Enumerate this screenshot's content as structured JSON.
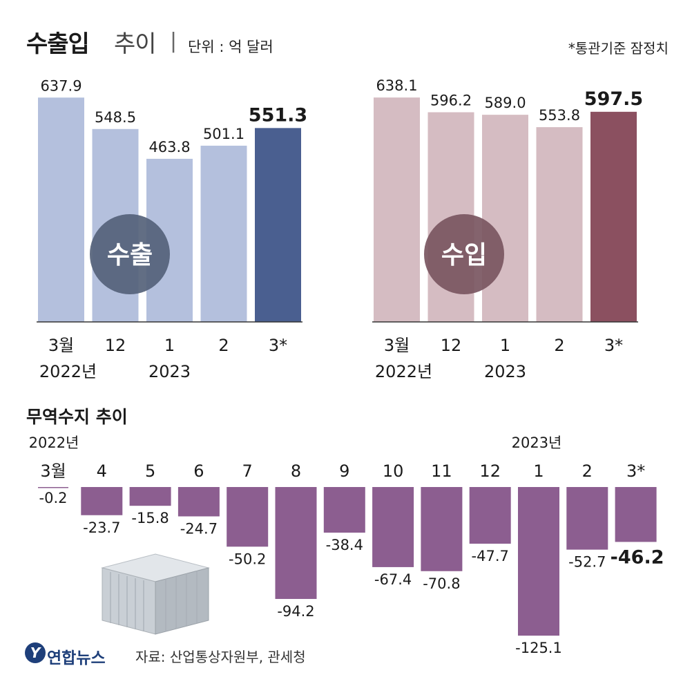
{
  "header": {
    "title_main": "수출입",
    "title_sub": "추이",
    "title_sep": "|",
    "unit": "단위 : 억 달러",
    "basis_note": "*통관기준 잠정치"
  },
  "chart_data": [
    {
      "type": "bar",
      "name": "수출",
      "categories": [
        "3월",
        "12",
        "1",
        "2",
        "3*"
      ],
      "year_labels": [
        "2022년",
        "2023"
      ],
      "values": [
        637.9,
        548.5,
        463.8,
        501.1,
        551.3
      ],
      "value_labels": [
        "637.9",
        "548.5",
        "463.8",
        "501.1",
        "551.3"
      ],
      "ylim": [
        0,
        660
      ],
      "highlight_index": 4,
      "colors": {
        "base": "#b4c0dd",
        "highlight": "#4a5f90",
        "circle": "#55627a"
      }
    },
    {
      "type": "bar",
      "name": "수입",
      "categories": [
        "3월",
        "12",
        "1",
        "2",
        "3*"
      ],
      "year_labels": [
        "2022년",
        "2023"
      ],
      "values": [
        638.1,
        596.2,
        589.0,
        553.8,
        597.5
      ],
      "value_labels": [
        "638.1",
        "596.2",
        "589.0",
        "553.8",
        "597.5"
      ],
      "ylim": [
        0,
        660
      ],
      "highlight_index": 4,
      "colors": {
        "base": "#d5bcc2",
        "highlight": "#8b5060",
        "circle": "#7a5661"
      }
    },
    {
      "type": "bar",
      "title": "무역수지 추이",
      "categories": [
        "3월",
        "4",
        "5",
        "6",
        "7",
        "8",
        "9",
        "10",
        "11",
        "12",
        "1",
        "2",
        "3*"
      ],
      "year_labels": [
        "2022년",
        "2023년"
      ],
      "values": [
        -0.2,
        -23.7,
        -15.8,
        -24.7,
        -50.2,
        -94.2,
        -38.4,
        -67.4,
        -70.8,
        -47.7,
        -125.1,
        -52.7,
        -46.2
      ],
      "value_labels": [
        "-0.2",
        "-23.7",
        "-15.8",
        "-24.7",
        "-50.2",
        "-94.2",
        "-38.4",
        "-67.4",
        "-70.8",
        "-47.7",
        "-125.1",
        "-52.7",
        "-46.2"
      ],
      "ylim": [
        -130,
        0
      ],
      "highlight_index": 12,
      "colors": {
        "bar": "#8c5e90"
      }
    }
  ],
  "footer": {
    "logo_text": "연합뉴스",
    "source": "자료: 산업통상자원부, 관세청"
  }
}
